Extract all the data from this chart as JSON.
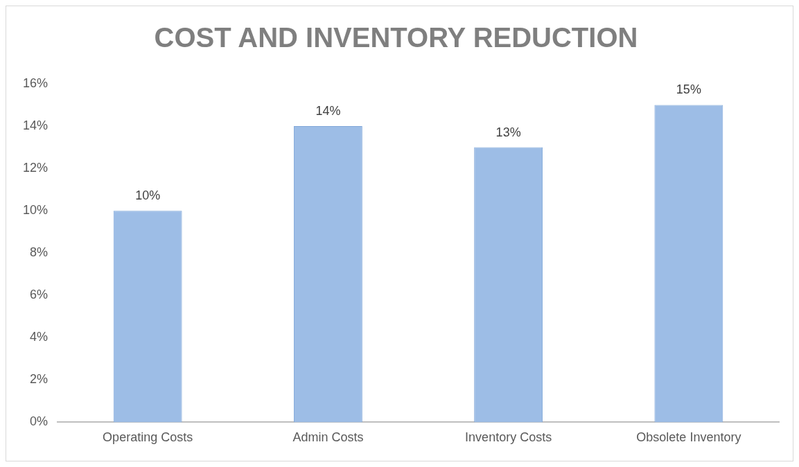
{
  "chart_data": {
    "type": "bar",
    "title": "COST AND INVENTORY REDUCTION",
    "categories": [
      "Operating Costs",
      "Admin Costs",
      "Inventory Costs",
      "Obsolete Inventory"
    ],
    "values": [
      10,
      14,
      13,
      15
    ],
    "color": "#9dbde6",
    "value_labels": [
      "10%",
      "14%",
      "13%",
      "15%"
    ],
    "ylim": [
      0,
      16
    ],
    "yticks": [
      {
        "value": 0,
        "label": "0%"
      },
      {
        "value": 2,
        "label": "2%"
      },
      {
        "value": 4,
        "label": "4%"
      },
      {
        "value": 6,
        "label": "6%"
      },
      {
        "value": 8,
        "label": "8%"
      },
      {
        "value": 10,
        "label": "10%"
      },
      {
        "value": 12,
        "label": "12%"
      },
      {
        "value": 14,
        "label": "14%"
      },
      {
        "value": 16,
        "label": "16%"
      }
    ],
    "grid": false,
    "legend": false
  }
}
